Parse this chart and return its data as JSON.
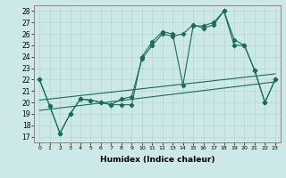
{
  "xlabel": "Humidex (Indice chaleur)",
  "bg_color": "#cce8e8",
  "grid_color": "#b0d0d0",
  "line_color": "#1a6b5a",
  "xlim": [
    -0.5,
    23.5
  ],
  "ylim": [
    16.5,
    28.5
  ],
  "yticks": [
    17,
    18,
    19,
    20,
    21,
    22,
    23,
    24,
    25,
    26,
    27,
    28
  ],
  "xticks": [
    0,
    1,
    2,
    3,
    4,
    5,
    6,
    7,
    8,
    9,
    10,
    11,
    12,
    13,
    14,
    15,
    16,
    17,
    18,
    19,
    20,
    21,
    22,
    23
  ],
  "line_jagged1": {
    "x": [
      0,
      1,
      2,
      3,
      4,
      5,
      6,
      7,
      8,
      9,
      10,
      11,
      12,
      13,
      14,
      15,
      16,
      17,
      18,
      19,
      20,
      21,
      22,
      23
    ],
    "y": [
      22.0,
      19.7,
      17.3,
      19.0,
      20.3,
      20.2,
      20.0,
      19.8,
      20.3,
      20.5,
      23.8,
      25.0,
      26.0,
      25.8,
      26.0,
      26.8,
      26.5,
      26.8,
      28.0,
      25.0,
      25.0,
      22.8,
      20.0,
      22.0
    ]
  },
  "line_jagged2": {
    "x": [
      0,
      1,
      2,
      3,
      4,
      5,
      6,
      7,
      8,
      9,
      10,
      11,
      12,
      13,
      14,
      15,
      16,
      17,
      18,
      19,
      20,
      21,
      22,
      23
    ],
    "y": [
      22.0,
      19.7,
      17.3,
      19.0,
      20.3,
      20.2,
      20.0,
      19.8,
      19.8,
      19.8,
      24.0,
      25.3,
      26.2,
      26.0,
      21.5,
      26.7,
      26.7,
      27.0,
      28.0,
      25.5,
      25.0,
      22.8,
      20.0,
      22.0
    ]
  },
  "line_diag1": {
    "x": [
      0,
      23
    ],
    "y": [
      19.3,
      21.8
    ]
  },
  "line_diag2": {
    "x": [
      0,
      23
    ],
    "y": [
      20.2,
      22.5
    ]
  }
}
